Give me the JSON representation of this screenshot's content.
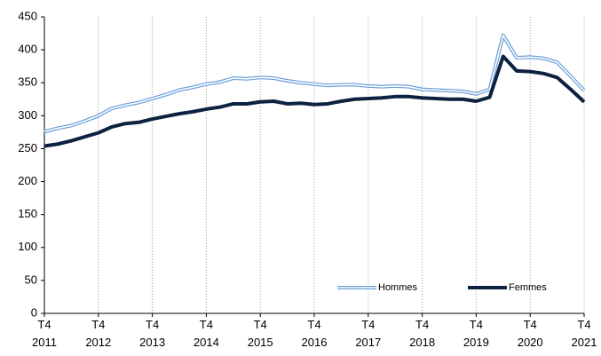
{
  "chart_data": {
    "type": "line",
    "categories": [
      "T4\n2011",
      null,
      null,
      null,
      "T4\n2012",
      null,
      null,
      null,
      "T4\n2013",
      null,
      null,
      null,
      "T4\n2014",
      null,
      null,
      null,
      "T4\n2015",
      null,
      null,
      null,
      "T4\n2016",
      null,
      null,
      null,
      "T4\n2017",
      null,
      null,
      null,
      "T4\n2018",
      null,
      null,
      null,
      "T4\n2019",
      null,
      null,
      null,
      "T4\n2020",
      null,
      null,
      null,
      "T4\n2021"
    ],
    "series": [
      {
        "name": "Hommes",
        "color": "#6a9fd8",
        "values": [
          276,
          281,
          285,
          292,
          300,
          311,
          316,
          320,
          326,
          332,
          339,
          343,
          348,
          351,
          357,
          356,
          358,
          357,
          353,
          350,
          348,
          346,
          347,
          347,
          345,
          344,
          345,
          344,
          340,
          339,
          338,
          337,
          333,
          340,
          422,
          388,
          389,
          387,
          381,
          360,
          338
        ]
      },
      {
        "name": "Femmes",
        "color": "#0d2240",
        "values": [
          254,
          257,
          262,
          268,
          274,
          283,
          288,
          290,
          295,
          299,
          303,
          306,
          310,
          313,
          318,
          318,
          321,
          322,
          318,
          319,
          317,
          318,
          322,
          325,
          326,
          327,
          329,
          329,
          327,
          326,
          325,
          325,
          322,
          328,
          390,
          368,
          367,
          364,
          358,
          340,
          321
        ]
      }
    ],
    "ylim": [
      0,
      450
    ],
    "yticks": [
      0,
      50,
      100,
      150,
      200,
      250,
      300,
      350,
      400,
      450
    ],
    "grid": true
  }
}
